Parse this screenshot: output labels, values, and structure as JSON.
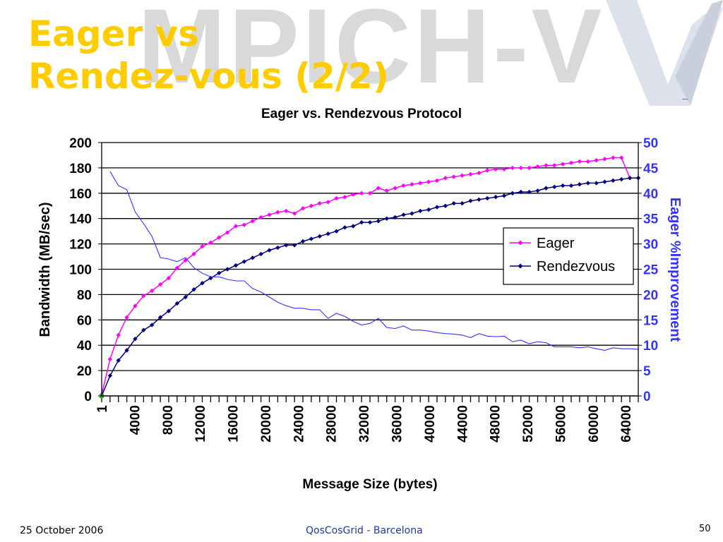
{
  "slide": {
    "title_line1": "Eager vs",
    "title_line2": "Rendez-vous (2/2)",
    "watermark": "MPICH-V",
    "footer_date": "25 October 2006",
    "footer_center": "QosCosGrid - Barcelona",
    "page_number": "50"
  },
  "colors": {
    "title": "#ffcc00",
    "eager": "#ff00ff",
    "rendezvous": "#000080",
    "improvement": "#3333ff",
    "axis_right": "#3333ff"
  },
  "chart_data": {
    "type": "line",
    "title": "Eager vs. Rendezvous Protocol",
    "xlabel": "Message Size (bytes)",
    "ylabel": "Bandwidth (MB/sec)",
    "y2label": "Eager %Improvement",
    "xlim": [
      1,
      65536
    ],
    "ylim": [
      0,
      200
    ],
    "y2lim": [
      0,
      50
    ],
    "xticks": [
      "1",
      "4000",
      "8000",
      "12000",
      "16000",
      "20000",
      "24000",
      "28000",
      "32000",
      "36000",
      "40000",
      "44000",
      "48000",
      "52000",
      "56000",
      "60000",
      "64000"
    ],
    "yticks": [
      "0",
      "20",
      "40",
      "60",
      "80",
      "100",
      "120",
      "140",
      "160",
      "180",
      "200"
    ],
    "y2ticks": [
      "0",
      "5",
      "10",
      "15",
      "20",
      "25",
      "30",
      "35",
      "40",
      "45",
      "50"
    ],
    "grid": true,
    "legend": "right",
    "legend_entries": [
      "Eager",
      "Rendezvous"
    ],
    "x": [
      1,
      1024,
      2048,
      3072,
      4096,
      5120,
      6144,
      7168,
      8192,
      9216,
      10240,
      11264,
      12288,
      13312,
      14336,
      15360,
      16384,
      17408,
      18432,
      19456,
      20480,
      21504,
      22528,
      23552,
      24576,
      25600,
      26624,
      27648,
      28672,
      29696,
      30720,
      31744,
      32768,
      33792,
      34816,
      35840,
      36864,
      37888,
      38912,
      39936,
      40960,
      41984,
      43008,
      44032,
      45056,
      46080,
      47104,
      48128,
      49152,
      50176,
      51200,
      52224,
      53248,
      54272,
      55296,
      56320,
      57344,
      58368,
      59392,
      60416,
      61440,
      62464,
      63488,
      64512,
      65536
    ],
    "series": [
      {
        "name": "Eager",
        "axis": "left",
        "values": [
          1,
          29,
          48,
          62,
          71,
          79,
          83,
          88,
          93,
          101,
          107,
          112,
          118,
          121,
          125,
          129,
          134,
          135,
          138,
          141,
          143,
          145,
          146,
          144,
          148,
          150,
          152,
          153,
          156,
          157,
          159,
          160,
          160,
          164,
          162,
          164,
          166,
          167,
          168,
          169,
          170,
          172,
          173,
          174,
          175,
          176,
          178,
          179,
          179,
          180,
          180,
          180,
          181,
          182,
          182,
          183,
          184,
          185,
          185,
          186,
          187,
          188,
          188,
          172,
          172
        ]
      },
      {
        "name": "Rendezvous",
        "axis": "left",
        "values": [
          0,
          16,
          28,
          36,
          45,
          52,
          56,
          62,
          67,
          73,
          78,
          84,
          89,
          93,
          97,
          100,
          103,
          106,
          109,
          112,
          115,
          117,
          119,
          119,
          122,
          124,
          126,
          128,
          130,
          133,
          134,
          137,
          137,
          138,
          140,
          141,
          143,
          144,
          146,
          147,
          149,
          150,
          152,
          152,
          154,
          155,
          156,
          157,
          158,
          160,
          161,
          161,
          162,
          164,
          165,
          166,
          166,
          167,
          168,
          168,
          169,
          170,
          171,
          172,
          172
        ]
      },
      {
        "axis": "right",
        "values": [
          null,
          44.3,
          41.5,
          40.7,
          36.3,
          34.0,
          31.5,
          27.3,
          27.0,
          26.5,
          27.3,
          25.3,
          24.2,
          23.5,
          23.5,
          23.0,
          22.7,
          22.7,
          21.2,
          20.5,
          19.5,
          18.5,
          17.8,
          17.3,
          17.3,
          17.0,
          17.0,
          15.3,
          16.3,
          15.7,
          14.7,
          14.0,
          14.3,
          15.3,
          13.5,
          13.3,
          13.8,
          13.0,
          13.0,
          12.8,
          12.5,
          12.3,
          12.2,
          12.0,
          11.5,
          12.3,
          11.8,
          11.7,
          11.8,
          10.7,
          11.0,
          10.3,
          10.7,
          10.5,
          9.7,
          9.7,
          9.7,
          9.5,
          9.7,
          9.3,
          9.0,
          9.5,
          9.3,
          9.3,
          9.2
        ]
      }
    ]
  }
}
